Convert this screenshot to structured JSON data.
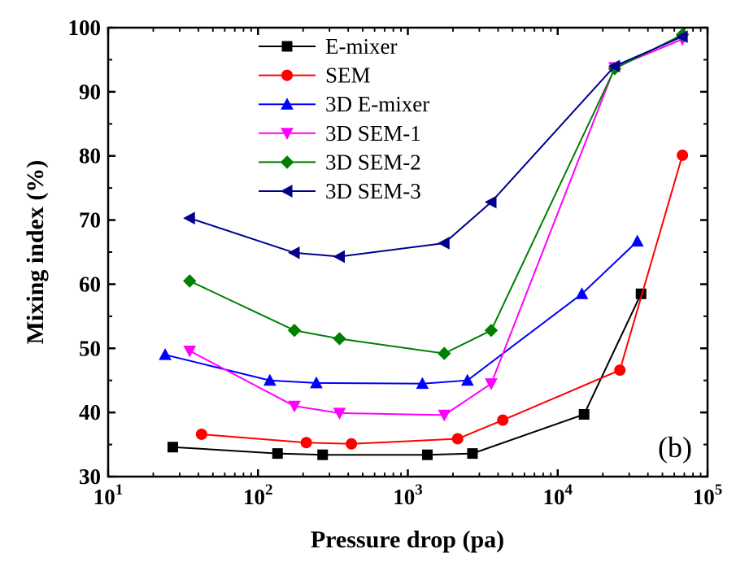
{
  "chart_data": {
    "type": "line",
    "x_scale": "log",
    "xlabel": "Pressure drop (pa)",
    "ylabel": "Mixing index (%)",
    "xlim": [
      10,
      100000
    ],
    "ylim": [
      30,
      100
    ],
    "x_ticks": [
      10,
      100,
      1000,
      10000,
      100000
    ],
    "x_tick_labels": [
      {
        "base": "10",
        "exp": "1"
      },
      {
        "base": "10",
        "exp": "2"
      },
      {
        "base": "10",
        "exp": "3"
      },
      {
        "base": "10",
        "exp": "4"
      },
      {
        "base": "10",
        "exp": "5"
      }
    ],
    "y_ticks": [
      30,
      40,
      50,
      60,
      70,
      80,
      90,
      100
    ],
    "y_tick_labels": [
      "30",
      "40",
      "50",
      "60",
      "70",
      "80",
      "90",
      "100"
    ],
    "grid": false,
    "legend_position": "top-left",
    "annotation": "(b)",
    "series": [
      {
        "name": "E-mixer",
        "color": "#000000",
        "marker": "square",
        "x": [
          27,
          135,
          270,
          1350,
          2700,
          15000,
          36000
        ],
        "y": [
          34.6,
          33.6,
          33.4,
          33.4,
          33.6,
          39.7,
          58.5
        ]
      },
      {
        "name": "SEM",
        "color": "#ff0000",
        "marker": "circle",
        "x": [
          42,
          210,
          420,
          2150,
          4300,
          26000,
          68000
        ],
        "y": [
          36.6,
          35.3,
          35.1,
          35.9,
          38.8,
          46.6,
          80.1
        ]
      },
      {
        "name": "3D E-mixer",
        "color": "#0000ff",
        "marker": "triangle-up",
        "x": [
          24,
          120,
          245,
          1250,
          2500,
          14500,
          34000
        ],
        "y": [
          49.0,
          45.0,
          44.6,
          44.5,
          45.0,
          58.5,
          66.7
        ]
      },
      {
        "name": "3D SEM-1",
        "color": "#ff00ff",
        "marker": "triangle-down",
        "x": [
          35,
          175,
          350,
          1750,
          3600,
          24000,
          68000
        ],
        "y": [
          49.6,
          41.0,
          39.9,
          39.6,
          44.5,
          93.8,
          98.2
        ]
      },
      {
        "name": "3D SEM-2",
        "color": "#008000",
        "marker": "diamond",
        "x": [
          35,
          175,
          350,
          1750,
          3600,
          24000,
          68000
        ],
        "y": [
          60.5,
          52.8,
          51.5,
          49.2,
          52.8,
          93.6,
          98.9
        ]
      },
      {
        "name": "3D SEM-3",
        "color": "#00008b",
        "marker": "triangle-left",
        "x": [
          35,
          175,
          350,
          1750,
          3600,
          24000,
          68000
        ],
        "y": [
          70.3,
          64.9,
          64.3,
          66.4,
          72.8,
          94.0,
          98.6
        ]
      }
    ]
  }
}
